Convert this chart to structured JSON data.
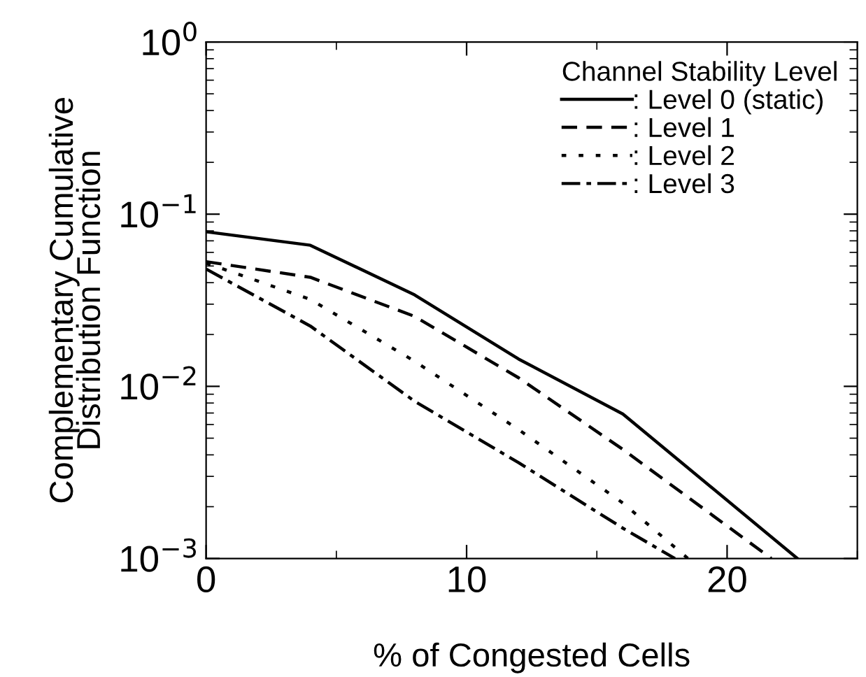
{
  "chart_data": {
    "type": "line",
    "xlabel": "% of Congested Cells",
    "ylabel": "Complementary Cumulative\nDistribution Function",
    "legend_title": "Channel Stability Level",
    "legend": "top right",
    "log": "y",
    "grid": false,
    "xlim": [
      0,
      25
    ],
    "xticks": [
      0,
      10,
      20
    ],
    "ylim": [
      0.001,
      1
    ],
    "yticks": [
      {
        "value": 0.001,
        "label": "10$^{−3}$"
      },
      {
        "value": 0.01,
        "label": "10$^{−2}$"
      },
      {
        "value": 0.1,
        "label": "10$^{−1}$"
      },
      {
        "value": 1,
        "label": "10$^{0}$"
      }
    ],
    "series": [
      {
        "name": ": Level 0 (static)",
        "color": "#000000",
        "line_style": "solid",
        "x": [
          0,
          4,
          8,
          12,
          16,
          22.7
        ],
        "values": [
          0.079,
          0.066,
          0.034,
          0.0144,
          0.0069,
          0.001
        ]
      },
      {
        "name": ": Level 1",
        "color": "#000000",
        "line_style": "dashed",
        "x": [
          0,
          4,
          8,
          12,
          16,
          21.7
        ],
        "values": [
          0.053,
          0.043,
          0.0255,
          0.0112,
          0.0043,
          0.001
        ]
      },
      {
        "name": ": Level 2",
        "color": "#000000",
        "line_style": "dotted",
        "x": [
          0,
          4,
          8,
          12,
          16,
          18.5
        ],
        "values": [
          0.052,
          0.032,
          0.014,
          0.0056,
          0.0021,
          0.001
        ]
      },
      {
        "name": ": Level 3",
        "color": "#000000",
        "line_style": "dashdot",
        "x": [
          0,
          4,
          8,
          12,
          16,
          18.0
        ],
        "values": [
          0.048,
          0.0224,
          0.0082,
          0.0036,
          0.0015,
          0.001
        ]
      }
    ]
  }
}
